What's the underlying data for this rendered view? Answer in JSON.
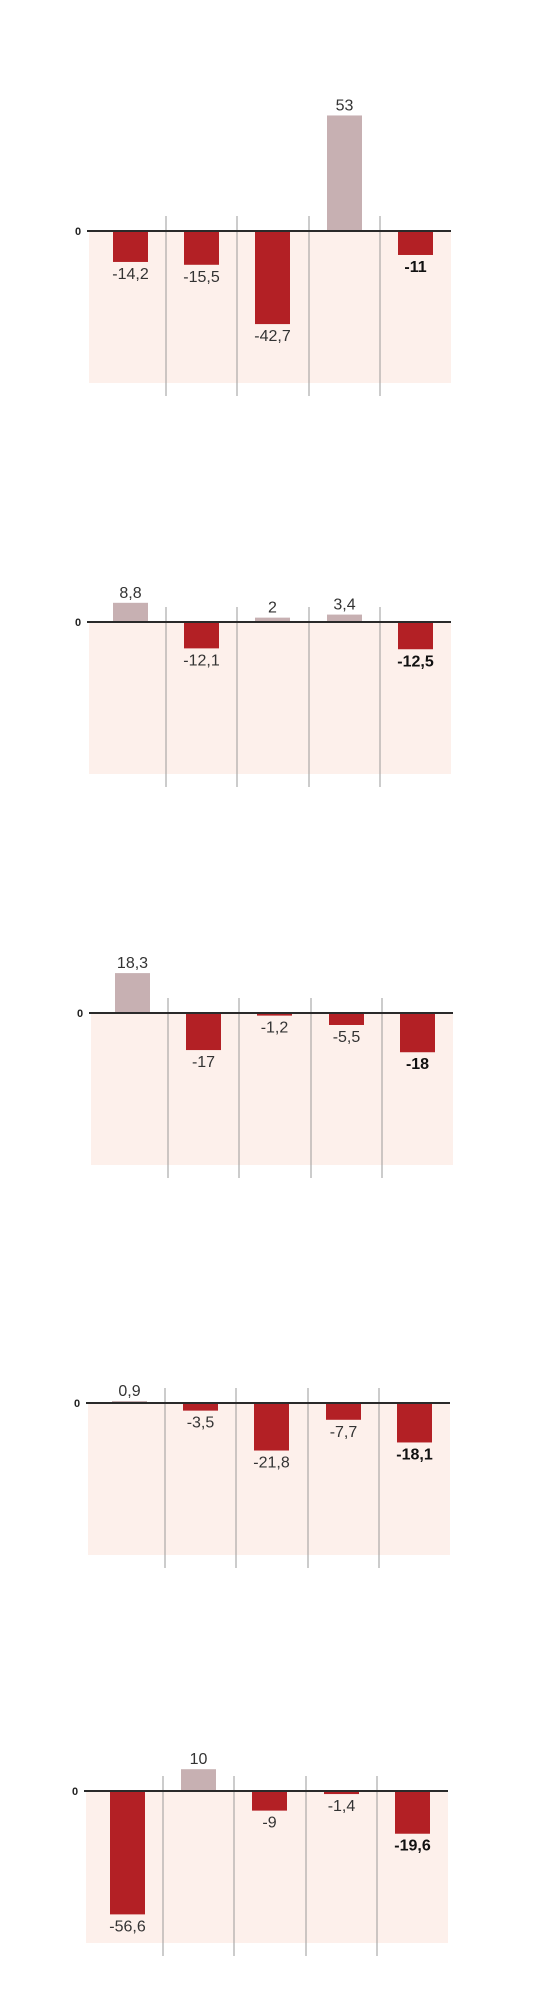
{
  "colors": {
    "negative": "#b32025",
    "positive": "#c7b0b2",
    "panel_background": "#fdf0eb",
    "baseline": "#2a2a2a",
    "divider": "#9a9a9a"
  },
  "chart_data": [
    {
      "type": "bar",
      "zero_label": "0",
      "values": [
        -14.2,
        -15.5,
        -42.7,
        53,
        -11
      ],
      "value_labels": [
        "-14,2",
        "-15,5",
        "-42,7",
        "53",
        "-11"
      ],
      "bold_last": true
    },
    {
      "type": "bar",
      "zero_label": "0",
      "values": [
        8.8,
        -12.1,
        2,
        3.4,
        -12.5
      ],
      "value_labels": [
        "8,8",
        "-12,1",
        "2",
        "3,4",
        "-12,5"
      ],
      "bold_last": true
    },
    {
      "type": "bar",
      "zero_label": "0",
      "values": [
        18.3,
        -17,
        -1.2,
        -5.5,
        -18
      ],
      "value_labels": [
        "18,3",
        "-17",
        "-1,2",
        "-5,5",
        "-18"
      ],
      "bold_last": true
    },
    {
      "type": "bar",
      "zero_label": "0",
      "values": [
        0.9,
        -3.5,
        -21.8,
        -7.7,
        -18.1
      ],
      "value_labels": [
        "0,9",
        "-3,5",
        "-21,8",
        "-7,7",
        "-18,1"
      ],
      "bold_last": true
    },
    {
      "type": "bar",
      "zero_label": "0",
      "values": [
        -56.6,
        10,
        -9,
        -1.4,
        -19.6
      ],
      "value_labels": [
        "-56,6",
        "10",
        "-9",
        "-1,4",
        "-19,6"
      ],
      "bold_last": true
    }
  ]
}
